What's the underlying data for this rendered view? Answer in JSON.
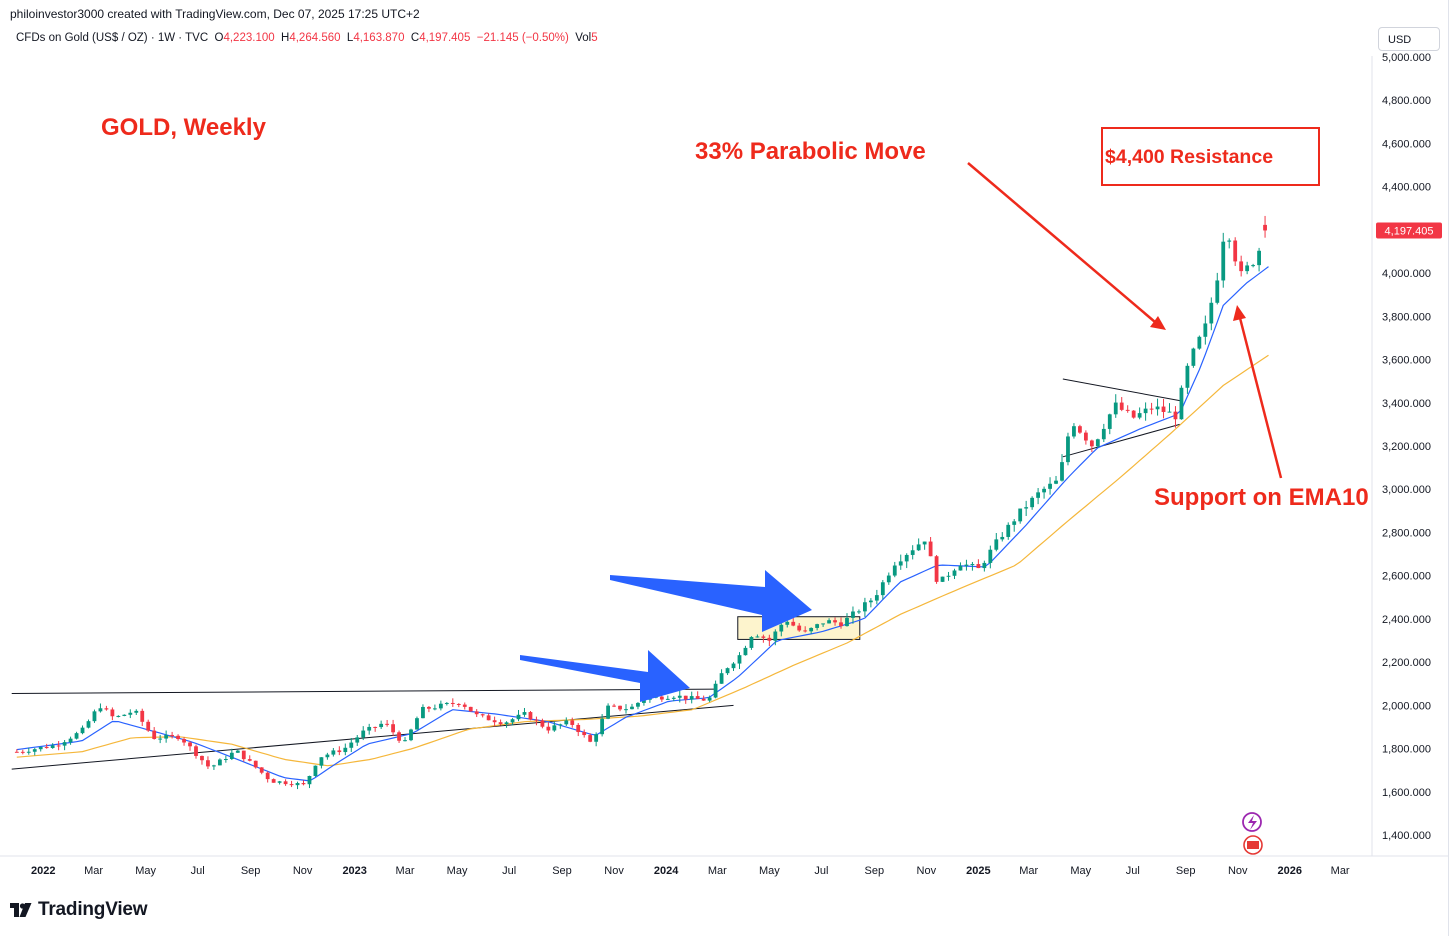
{
  "header": {
    "caption": "philoinvestor3000 created with TradingView.com, Dec 07, 2025 17:25 UTC+2",
    "instrument": "CFDs on Gold (US$ / OZ) · 1W · TVC",
    "o_label": "O",
    "o_value": "4,223.100",
    "h_label": "H",
    "h_value": "4,264.560",
    "l_label": "L",
    "l_value": "4,163.870",
    "c_label": "C",
    "c_value": "4,197.405",
    "change": "−21.145 (−0.50%)",
    "vol_label": "Vol",
    "vol_value": "5",
    "currency_button": "USD"
  },
  "annotations": {
    "title": "GOLD, Weekly",
    "parabolic": "33% Parabolic Move",
    "resistance": "$4,400 Resistance",
    "support": "Support on EMA10"
  },
  "footer": {
    "brand": "TradingView"
  },
  "colors": {
    "up": "#089981",
    "down": "#f23645",
    "ema10": "#2962ff",
    "ema_slow": "#f5b73b",
    "annotation": "#ee2a1c",
    "arrow_blue": "#2962ff"
  },
  "chart_data": {
    "type": "candlestick",
    "title": "GOLD, Weekly",
    "ylim": [
      1300,
      5000
    ],
    "yticks": [
      1400,
      1600,
      1800,
      2000,
      2200,
      2400,
      2600,
      2800,
      3000,
      3200,
      3400,
      3600,
      3800,
      4000,
      4200,
      4400,
      4600,
      4800,
      5000
    ],
    "ytick_labels": [
      "1,400.000",
      "1,600.000",
      "1,800.000",
      "2,000.000",
      "2,200.000",
      "2,400.000",
      "2,600.000",
      "2,800.000",
      "3,000.000",
      "3,200.000",
      "3,400.000",
      "3,600.000",
      "3,800.000",
      "4,000.000",
      "4,200.000",
      "4,400.000",
      "4,600.000",
      "4,800.000",
      "5,000.000"
    ],
    "xticks": [
      {
        "label": "2022",
        "date": "2022-01-01",
        "bold": true
      },
      {
        "label": "Mar",
        "date": "2022-03-01"
      },
      {
        "label": "May",
        "date": "2022-05-01"
      },
      {
        "label": "Jul",
        "date": "2022-07-01"
      },
      {
        "label": "Sep",
        "date": "2022-09-01"
      },
      {
        "label": "Nov",
        "date": "2022-11-01"
      },
      {
        "label": "2023",
        "date": "2023-01-01",
        "bold": true
      },
      {
        "label": "Mar",
        "date": "2023-03-01"
      },
      {
        "label": "May",
        "date": "2023-05-01"
      },
      {
        "label": "Jul",
        "date": "2023-07-01"
      },
      {
        "label": "Sep",
        "date": "2023-09-01"
      },
      {
        "label": "Nov",
        "date": "2023-11-01"
      },
      {
        "label": "2024",
        "date": "2024-01-01",
        "bold": true
      },
      {
        "label": "Mar",
        "date": "2024-03-01"
      },
      {
        "label": "May",
        "date": "2024-05-01"
      },
      {
        "label": "Jul",
        "date": "2024-07-01"
      },
      {
        "label": "Sep",
        "date": "2024-09-01"
      },
      {
        "label": "Nov",
        "date": "2024-11-01"
      },
      {
        "label": "2025",
        "date": "2025-01-01",
        "bold": true
      },
      {
        "label": "Mar",
        "date": "2025-03-01"
      },
      {
        "label": "May",
        "date": "2025-05-01"
      },
      {
        "label": "Jul",
        "date": "2025-07-01"
      },
      {
        "label": "Sep",
        "date": "2025-09-01"
      },
      {
        "label": "Nov",
        "date": "2025-11-01"
      },
      {
        "label": "2026",
        "date": "2026-01-01",
        "bold": true
      },
      {
        "label": "Mar",
        "date": "2026-03-01"
      }
    ],
    "last_price": 4197.405,
    "last_price_label": "4,197.405",
    "price_path": [
      [
        "2021-12-01",
        1785
      ],
      [
        "2022-01-15",
        1815
      ],
      [
        "2022-02-15",
        1880
      ],
      [
        "2022-03-08",
        2000
      ],
      [
        "2022-03-25",
        1940
      ],
      [
        "2022-04-18",
        1975
      ],
      [
        "2022-05-10",
        1850
      ],
      [
        "2022-06-10",
        1855
      ],
      [
        "2022-07-15",
        1710
      ],
      [
        "2022-08-15",
        1790
      ],
      [
        "2022-09-05",
        1720
      ],
      [
        "2022-09-25",
        1650
      ],
      [
        "2022-10-20",
        1640
      ],
      [
        "2022-11-03",
        1630
      ],
      [
        "2022-11-20",
        1760
      ],
      [
        "2022-12-20",
        1800
      ],
      [
        "2023-01-10",
        1875
      ],
      [
        "2023-02-05",
        1920
      ],
      [
        "2023-02-28",
        1820
      ],
      [
        "2023-03-20",
        1980
      ],
      [
        "2023-04-15",
        2000
      ],
      [
        "2023-05-05",
        2015
      ],
      [
        "2023-05-25",
        1950
      ],
      [
        "2023-06-25",
        1920
      ],
      [
        "2023-07-20",
        1960
      ],
      [
        "2023-08-15",
        1890
      ],
      [
        "2023-09-10",
        1925
      ],
      [
        "2023-10-05",
        1825
      ],
      [
        "2023-10-25",
        1990
      ],
      [
        "2023-11-20",
        1985
      ],
      [
        "2023-12-05",
        2030
      ],
      [
        "2024-01-10",
        2045
      ],
      [
        "2024-02-01",
        2030
      ],
      [
        "2024-02-20",
        2025
      ],
      [
        "2024-03-08",
        2160
      ],
      [
        "2024-03-28",
        2235
      ],
      [
        "2024-04-12",
        2340
      ],
      [
        "2024-05-01",
        2300
      ],
      [
        "2024-05-20",
        2400
      ],
      [
        "2024-06-10",
        2330
      ],
      [
        "2024-07-05",
        2390
      ],
      [
        "2024-07-25",
        2380
      ],
      [
        "2024-08-10",
        2430
      ],
      [
        "2024-09-01",
        2500
      ],
      [
        "2024-09-25",
        2660
      ],
      [
        "2024-10-30",
        2770
      ],
      [
        "2024-11-15",
        2560
      ],
      [
        "2024-12-10",
        2660
      ],
      [
        "2025-01-01",
        2630
      ],
      [
        "2025-01-25",
        2770
      ],
      [
        "2025-02-20",
        2900
      ],
      [
        "2025-03-15",
        2990
      ],
      [
        "2025-04-05",
        3040
      ],
      [
        "2025-04-20",
        3320
      ],
      [
        "2025-05-15",
        3200
      ],
      [
        "2025-06-10",
        3390
      ],
      [
        "2025-07-01",
        3330
      ],
      [
        "2025-07-25",
        3380
      ],
      [
        "2025-08-20",
        3340
      ],
      [
        "2025-09-05",
        3590
      ],
      [
        "2025-09-25",
        3760
      ],
      [
        "2025-10-10",
        4020
      ],
      [
        "2025-10-18",
        4250
      ],
      [
        "2025-10-25",
        4120
      ],
      [
        "2025-11-05",
        3990
      ],
      [
        "2025-11-20",
        4060
      ],
      [
        "2025-12-07",
        4197
      ]
    ],
    "ema10": [
      [
        "2021-12-01",
        1795
      ],
      [
        "2022-02-15",
        1835
      ],
      [
        "2022-03-25",
        1930
      ],
      [
        "2022-05-10",
        1880
      ],
      [
        "2022-06-25",
        1830
      ],
      [
        "2022-08-10",
        1760
      ],
      [
        "2022-10-10",
        1665
      ],
      [
        "2022-11-10",
        1650
      ],
      [
        "2022-12-10",
        1730
      ],
      [
        "2023-01-15",
        1820
      ],
      [
        "2023-03-10",
        1870
      ],
      [
        "2023-04-25",
        1980
      ],
      [
        "2023-06-15",
        1960
      ],
      [
        "2023-08-15",
        1925
      ],
      [
        "2023-10-10",
        1860
      ],
      [
        "2023-11-15",
        1945
      ],
      [
        "2024-01-05",
        2020
      ],
      [
        "2024-02-20",
        2035
      ],
      [
        "2024-03-25",
        2130
      ],
      [
        "2024-05-10",
        2300
      ],
      [
        "2024-07-01",
        2340
      ],
      [
        "2024-08-20",
        2400
      ],
      [
        "2024-10-01",
        2570
      ],
      [
        "2024-11-15",
        2650
      ],
      [
        "2025-01-10",
        2640
      ],
      [
        "2025-02-25",
        2830
      ],
      [
        "2025-04-15",
        3050
      ],
      [
        "2025-05-20",
        3190
      ],
      [
        "2025-07-10",
        3280
      ],
      [
        "2025-08-25",
        3350
      ],
      [
        "2025-09-20",
        3580
      ],
      [
        "2025-10-15",
        3850
      ],
      [
        "2025-11-10",
        3950
      ],
      [
        "2025-12-07",
        4030
      ]
    ],
    "ema_slow": [
      [
        "2021-12-01",
        1760
      ],
      [
        "2022-02-15",
        1785
      ],
      [
        "2022-04-15",
        1850
      ],
      [
        "2022-06-10",
        1855
      ],
      [
        "2022-08-10",
        1820
      ],
      [
        "2022-10-10",
        1750
      ],
      [
        "2022-12-01",
        1720
      ],
      [
        "2023-01-20",
        1750
      ],
      [
        "2023-03-10",
        1800
      ],
      [
        "2023-05-15",
        1890
      ],
      [
        "2023-07-20",
        1925
      ],
      [
        "2023-09-30",
        1935
      ],
      [
        "2023-12-01",
        1950
      ],
      [
        "2024-02-01",
        1980
      ],
      [
        "2024-04-01",
        2080
      ],
      [
        "2024-06-01",
        2190
      ],
      [
        "2024-08-01",
        2290
      ],
      [
        "2024-10-01",
        2420
      ],
      [
        "2024-12-10",
        2540
      ],
      [
        "2025-02-15",
        2650
      ],
      [
        "2025-04-15",
        2850
      ],
      [
        "2025-06-15",
        3050
      ],
      [
        "2025-08-15",
        3260
      ],
      [
        "2025-10-15",
        3480
      ],
      [
        "2025-12-07",
        3620
      ]
    ]
  }
}
